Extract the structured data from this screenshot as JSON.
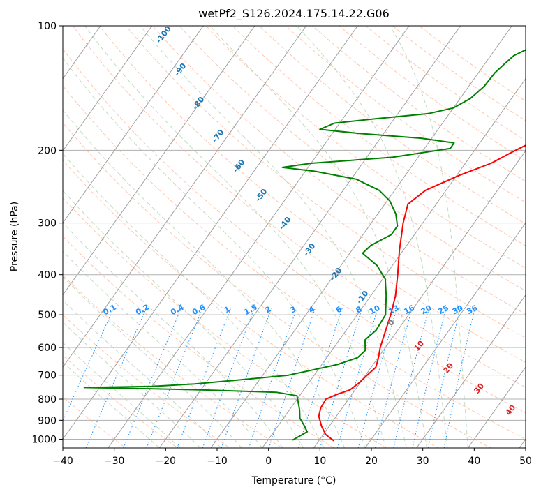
{
  "chart_data": {
    "type": "skew-t log-p",
    "title": "wetPf2_S126.2024.175.14.22.G06",
    "xlabel": "Temperature (°C)",
    "ylabel": "Pressure (hPa)",
    "xlim": [
      -40,
      50
    ],
    "ylim": [
      1050,
      100
    ],
    "y_scale": "log",
    "x_ticks": [
      "−40",
      "−30",
      "−20",
      "−10",
      "0",
      "10",
      "20",
      "30",
      "40",
      "50"
    ],
    "y_ticks": [
      {
        "p": 100,
        "label": "100"
      },
      {
        "p": 200,
        "label": "200"
      },
      {
        "p": 300,
        "label": "300"
      },
      {
        "p": 400,
        "label": "400"
      },
      {
        "p": 500,
        "label": "500"
      },
      {
        "p": 600,
        "label": "600"
      },
      {
        "p": 700,
        "label": "700"
      },
      {
        "p": 800,
        "label": "800"
      },
      {
        "p": 900,
        "label": "900"
      },
      {
        "p": 1000,
        "label": "1000"
      }
    ],
    "grid": true,
    "colors": {
      "temperature": "#ff0000",
      "dewpoint": "#008000",
      "isotherm": "#a0a0a0",
      "dry_adiabat": "#ffa07a",
      "moist_adiabat": "#8fbc8f",
      "mixing_ratio": "#1e90ff",
      "wetbulb_label": "#1f77b4",
      "theta_label": "#d62728"
    },
    "temperature_profile": [
      {
        "p": 1010,
        "t": 13.0
      },
      {
        "p": 975,
        "t": 10.5
      },
      {
        "p": 930,
        "t": 8.5
      },
      {
        "p": 880,
        "t": 6.6
      },
      {
        "p": 840,
        "t": 5.8
      },
      {
        "p": 800,
        "t": 5.6
      },
      {
        "p": 780,
        "t": 7.0
      },
      {
        "p": 760,
        "t": 9.0
      },
      {
        "p": 730,
        "t": 9.8
      },
      {
        "p": 700,
        "t": 10.3
      },
      {
        "p": 670,
        "t": 10.9
      },
      {
        "p": 640,
        "t": 10.2
      },
      {
        "p": 600,
        "t": 9.0
      },
      {
        "p": 550,
        "t": 7.8
      },
      {
        "p": 500,
        "t": 6.5
      },
      {
        "p": 450,
        "t": 4.8
      },
      {
        "p": 400,
        "t": 2.3
      },
      {
        "p": 350,
        "t": -0.7
      },
      {
        "p": 300,
        "t": -3.8
      },
      {
        "p": 270,
        "t": -5.5
      },
      {
        "p": 250,
        "t": -4.0
      },
      {
        "p": 230,
        "t": 0.5
      },
      {
        "p": 215,
        "t": 5.0
      },
      {
        "p": 200,
        "t": 8.0
      },
      {
        "p": 185,
        "t": 11.5
      },
      {
        "p": 170,
        "t": 14.5
      },
      {
        "p": 160,
        "t": 15.0
      },
      {
        "p": 150,
        "t": 15.5
      },
      {
        "p": 130,
        "t": 18.5
      },
      {
        "p": 115,
        "t": 19.8
      },
      {
        "p": 108,
        "t": 19.0
      },
      {
        "p": 100,
        "t": 18.4
      }
    ],
    "dewpoint_profile": [
      {
        "p": 1005,
        "t": 4.8
      },
      {
        "p": 960,
        "t": 6.5
      },
      {
        "p": 930,
        "t": 5.2
      },
      {
        "p": 890,
        "t": 3.2
      },
      {
        "p": 850,
        "t": 2.0
      },
      {
        "p": 810,
        "t": 0.5
      },
      {
        "p": 785,
        "t": -0.5
      },
      {
        "p": 770,
        "t": -5.0
      },
      {
        "p": 760,
        "t": -20.0
      },
      {
        "p": 755,
        "t": -30.0
      },
      {
        "p": 750,
        "t": -43.0
      },
      {
        "p": 745,
        "t": -30.0
      },
      {
        "p": 735,
        "t": -22.0
      },
      {
        "p": 715,
        "t": -12.0
      },
      {
        "p": 700,
        "t": -5.0
      },
      {
        "p": 680,
        "t": -1.0
      },
      {
        "p": 660,
        "t": 3.0
      },
      {
        "p": 635,
        "t": 6.0
      },
      {
        "p": 610,
        "t": 6.5
      },
      {
        "p": 575,
        "t": 5.0
      },
      {
        "p": 545,
        "t": 5.8
      },
      {
        "p": 500,
        "t": 5.5
      },
      {
        "p": 450,
        "t": 3.0
      },
      {
        "p": 410,
        "t": 0.5
      },
      {
        "p": 380,
        "t": -3.0
      },
      {
        "p": 355,
        "t": -7.5
      },
      {
        "p": 340,
        "t": -7.0
      },
      {
        "p": 320,
        "t": -4.5
      },
      {
        "p": 305,
        "t": -4.5
      },
      {
        "p": 285,
        "t": -6.5
      },
      {
        "p": 265,
        "t": -9.5
      },
      {
        "p": 250,
        "t": -13.0
      },
      {
        "p": 235,
        "t": -19.0
      },
      {
        "p": 225,
        "t": -28.0
      },
      {
        "p": 220,
        "t": -35.0
      },
      {
        "p": 215,
        "t": -30.0
      },
      {
        "p": 208,
        "t": -15.0
      },
      {
        "p": 198,
        "t": -5.0
      },
      {
        "p": 192,
        "t": -5.0
      },
      {
        "p": 187,
        "t": -12.0
      },
      {
        "p": 182,
        "t": -25.0
      },
      {
        "p": 178,
        "t": -33.0
      },
      {
        "p": 172,
        "t": -31.0
      },
      {
        "p": 168,
        "t": -24.0
      },
      {
        "p": 163,
        "t": -14.0
      },
      {
        "p": 158,
        "t": -10.0
      },
      {
        "p": 150,
        "t": -8.0
      },
      {
        "p": 140,
        "t": -7.0
      },
      {
        "p": 130,
        "t": -6.8
      },
      {
        "p": 122,
        "t": -6.0
      },
      {
        "p": 118,
        "t": -5.5
      },
      {
        "p": 112,
        "t": -3.0
      },
      {
        "p": 106,
        "t": 0.0
      },
      {
        "p": 100,
        "t": 2.0
      }
    ],
    "mixing_ratio_labels": [
      "0.1",
      "0.2",
      "0.4",
      "0.6",
      "1",
      "1.5",
      "2",
      "3",
      "4",
      "6",
      "8",
      "10",
      "13",
      "16",
      "20",
      "25",
      "30",
      "36"
    ],
    "wetbulb_isotherm_labels": [
      "-100",
      "-90",
      "-80",
      "-70",
      "-60",
      "-50",
      "-40",
      "-30",
      "-20",
      "-10"
    ],
    "moist_adiabat_labels": [
      "0",
      "10",
      "20",
      "30",
      "40"
    ]
  }
}
